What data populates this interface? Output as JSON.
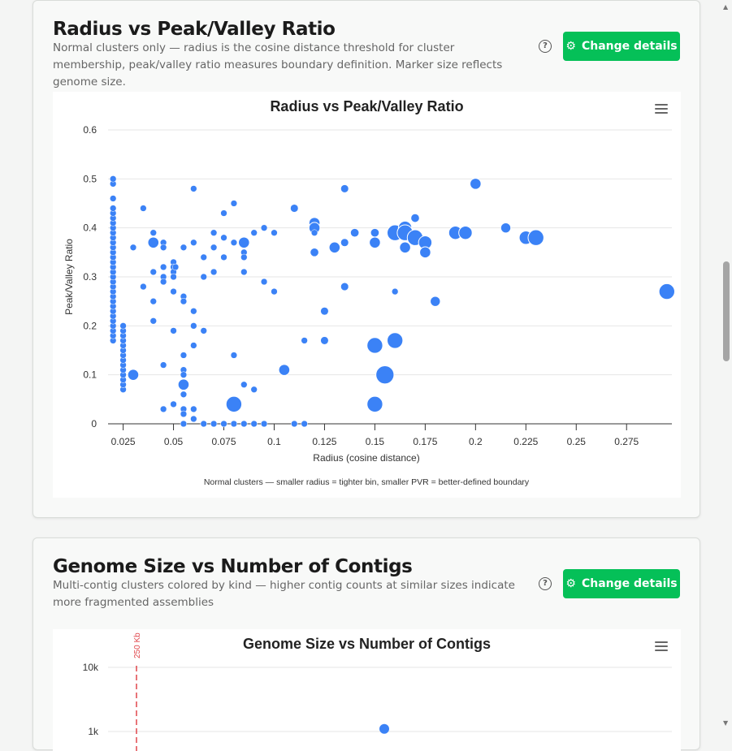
{
  "cards": [
    {
      "title": "Radius vs Peak/Valley Ratio",
      "description": "Normal clusters only — radius is the cosine distance threshold for cluster membership, peak/valley ratio measures boundary definition. Marker size reflects genome size.",
      "help_icon": "?",
      "button_label": "Change details",
      "button_icon": "gear-icon"
    },
    {
      "title": "Genome Size vs Number of Contigs",
      "description": "Multi-contig clusters colored by kind — higher contig counts at similar sizes indicate more fragmented assemblies",
      "help_icon": "?",
      "button_label": "Change details",
      "button_icon": "gear-icon"
    }
  ],
  "colors": {
    "accent": "#05c058",
    "marker": "#3b82f6",
    "plotline": "#e0464b"
  },
  "chart_data": [
    {
      "type": "scatter",
      "title": "Radius vs Peak/Valley Ratio",
      "xlabel": "Radius (cosine distance)",
      "ylabel": "Peak/Valley Ratio",
      "caption": "Normal clusters — smaller radius = tighter bin, smaller PVR = better-defined boundary",
      "xlim": [
        0.0175,
        0.2975
      ],
      "ylim": [
        0,
        0.6
      ],
      "xticks": [
        "0.025",
        "0.05",
        "0.075",
        "0.1",
        "0.125",
        "0.15",
        "0.175",
        "0.2",
        "0.225",
        "0.25",
        "0.275"
      ],
      "yticks": [
        "0",
        "0.1",
        "0.2",
        "0.3",
        "0.4",
        "0.5",
        "0.6"
      ],
      "grid": true,
      "point_fields": [
        "radius",
        "peak_valley_ratio",
        "relative_genome_size"
      ],
      "points": [
        [
          0.02,
          0.17,
          1
        ],
        [
          0.02,
          0.18,
          1
        ],
        [
          0.02,
          0.19,
          1
        ],
        [
          0.02,
          0.2,
          1
        ],
        [
          0.02,
          0.21,
          1
        ],
        [
          0.02,
          0.22,
          1
        ],
        [
          0.02,
          0.23,
          1
        ],
        [
          0.02,
          0.24,
          1
        ],
        [
          0.02,
          0.25,
          1
        ],
        [
          0.02,
          0.26,
          1
        ],
        [
          0.02,
          0.27,
          1
        ],
        [
          0.02,
          0.28,
          1
        ],
        [
          0.02,
          0.29,
          1
        ],
        [
          0.02,
          0.3,
          1
        ],
        [
          0.02,
          0.31,
          1
        ],
        [
          0.02,
          0.32,
          1
        ],
        [
          0.02,
          0.33,
          1
        ],
        [
          0.02,
          0.34,
          1
        ],
        [
          0.02,
          0.35,
          1
        ],
        [
          0.02,
          0.36,
          1
        ],
        [
          0.02,
          0.37,
          1
        ],
        [
          0.02,
          0.38,
          1
        ],
        [
          0.02,
          0.39,
          1
        ],
        [
          0.02,
          0.4,
          1
        ],
        [
          0.02,
          0.41,
          1
        ],
        [
          0.02,
          0.42,
          1
        ],
        [
          0.02,
          0.43,
          1
        ],
        [
          0.02,
          0.44,
          1
        ],
        [
          0.02,
          0.46,
          1
        ],
        [
          0.02,
          0.49,
          1
        ],
        [
          0.02,
          0.5,
          1
        ],
        [
          0.025,
          0.07,
          1
        ],
        [
          0.025,
          0.08,
          1
        ],
        [
          0.025,
          0.09,
          1
        ],
        [
          0.025,
          0.1,
          1
        ],
        [
          0.025,
          0.11,
          1
        ],
        [
          0.025,
          0.12,
          1
        ],
        [
          0.025,
          0.13,
          1
        ],
        [
          0.025,
          0.14,
          1
        ],
        [
          0.025,
          0.15,
          1
        ],
        [
          0.025,
          0.16,
          1
        ],
        [
          0.025,
          0.17,
          1
        ],
        [
          0.025,
          0.18,
          1
        ],
        [
          0.025,
          0.19,
          1
        ],
        [
          0.025,
          0.2,
          1
        ],
        [
          0.03,
          0.1,
          2
        ],
        [
          0.03,
          0.36,
          1
        ],
        [
          0.035,
          0.44,
          1
        ],
        [
          0.035,
          0.28,
          1
        ],
        [
          0.04,
          0.39,
          1
        ],
        [
          0.04,
          0.37,
          2
        ],
        [
          0.04,
          0.31,
          1
        ],
        [
          0.04,
          0.25,
          1
        ],
        [
          0.04,
          0.21,
          1
        ],
        [
          0.045,
          0.37,
          1
        ],
        [
          0.045,
          0.36,
          1
        ],
        [
          0.045,
          0.32,
          1
        ],
        [
          0.045,
          0.3,
          1
        ],
        [
          0.045,
          0.29,
          1
        ],
        [
          0.045,
          0.12,
          1
        ],
        [
          0.045,
          0.03,
          1
        ],
        [
          0.05,
          0.33,
          1
        ],
        [
          0.05,
          0.32,
          1
        ],
        [
          0.05,
          0.31,
          1
        ],
        [
          0.05,
          0.3,
          1
        ],
        [
          0.05,
          0.27,
          1
        ],
        [
          0.05,
          0.19,
          1
        ],
        [
          0.05,
          0.04,
          1
        ],
        [
          0.051,
          0.32,
          1
        ],
        [
          0.055,
          0.36,
          1
        ],
        [
          0.055,
          0.26,
          1
        ],
        [
          0.055,
          0.25,
          1
        ],
        [
          0.055,
          0.14,
          1
        ],
        [
          0.055,
          0.11,
          1
        ],
        [
          0.055,
          0.1,
          1
        ],
        [
          0.055,
          0.08,
          2
        ],
        [
          0.055,
          0.06,
          1
        ],
        [
          0.055,
          0.03,
          1
        ],
        [
          0.055,
          0.02,
          1
        ],
        [
          0.055,
          0,
          1
        ],
        [
          0.06,
          0.48,
          1
        ],
        [
          0.06,
          0.37,
          1
        ],
        [
          0.06,
          0.23,
          1
        ],
        [
          0.06,
          0.2,
          1
        ],
        [
          0.06,
          0.16,
          1
        ],
        [
          0.06,
          0.03,
          1
        ],
        [
          0.06,
          0.01,
          1
        ],
        [
          0.065,
          0.34,
          1
        ],
        [
          0.065,
          0.3,
          1
        ],
        [
          0.065,
          0.19,
          1
        ],
        [
          0.065,
          0,
          1
        ],
        [
          0.07,
          0.39,
          1
        ],
        [
          0.07,
          0.36,
          1
        ],
        [
          0.07,
          0.31,
          1
        ],
        [
          0.07,
          0,
          1
        ],
        [
          0.075,
          0.43,
          1
        ],
        [
          0.075,
          0.38,
          1
        ],
        [
          0.075,
          0.34,
          1
        ],
        [
          0.075,
          0,
          1
        ],
        [
          0.08,
          0.45,
          1
        ],
        [
          0.08,
          0.37,
          1
        ],
        [
          0.08,
          0.14,
          1
        ],
        [
          0.08,
          0.04,
          3
        ],
        [
          0.08,
          0,
          1
        ],
        [
          0.085,
          0.37,
          2
        ],
        [
          0.085,
          0.35,
          1
        ],
        [
          0.085,
          0.34,
          1
        ],
        [
          0.085,
          0.31,
          1
        ],
        [
          0.085,
          0.08,
          1
        ],
        [
          0.085,
          0,
          1
        ],
        [
          0.09,
          0.39,
          1
        ],
        [
          0.09,
          0.07,
          1
        ],
        [
          0.09,
          0,
          1
        ],
        [
          0.095,
          0.4,
          1
        ],
        [
          0.095,
          0.29,
          1
        ],
        [
          0.095,
          0,
          1
        ],
        [
          0.1,
          0.39,
          1
        ],
        [
          0.1,
          0.27,
          1
        ],
        [
          0.105,
          0.11,
          2
        ],
        [
          0.11,
          0.44,
          1.3
        ],
        [
          0.11,
          0,
          1
        ],
        [
          0.115,
          0.17,
          1
        ],
        [
          0.115,
          0,
          1
        ],
        [
          0.12,
          0.41,
          2
        ],
        [
          0.12,
          0.4,
          2
        ],
        [
          0.12,
          0.39,
          1
        ],
        [
          0.12,
          0.35,
          1.5
        ],
        [
          0.125,
          0.23,
          1.3
        ],
        [
          0.125,
          0.17,
          1.3
        ],
        [
          0.13,
          0.36,
          2
        ],
        [
          0.135,
          0.48,
          1.3
        ],
        [
          0.135,
          0.37,
          1.3
        ],
        [
          0.135,
          0.28,
          1.3
        ],
        [
          0.14,
          0.39,
          1.5
        ],
        [
          0.15,
          0.39,
          1.5
        ],
        [
          0.15,
          0.37,
          2
        ],
        [
          0.15,
          0.16,
          3
        ],
        [
          0.15,
          0.04,
          3
        ],
        [
          0.155,
          0.1,
          3.5
        ],
        [
          0.16,
          0.39,
          3
        ],
        [
          0.16,
          0.27,
          1
        ],
        [
          0.16,
          0.17,
          3
        ],
        [
          0.165,
          0.4,
          2.5
        ],
        [
          0.165,
          0.39,
          3
        ],
        [
          0.165,
          0.36,
          2
        ],
        [
          0.17,
          0.42,
          1.5
        ],
        [
          0.17,
          0.38,
          3
        ],
        [
          0.175,
          0.37,
          2.5
        ],
        [
          0.175,
          0.35,
          2
        ],
        [
          0.18,
          0.25,
          1.8
        ],
        [
          0.19,
          0.39,
          2.5
        ],
        [
          0.195,
          0.39,
          2.5
        ],
        [
          0.2,
          0.49,
          2
        ],
        [
          0.215,
          0.4,
          1.8
        ],
        [
          0.225,
          0.38,
          2.5
        ],
        [
          0.23,
          0.38,
          3
        ],
        [
          0.295,
          0.27,
          3
        ]
      ]
    },
    {
      "type": "scatter",
      "title": "Genome Size vs Number of Contigs",
      "y_scale": "log",
      "yticks": [
        "10k",
        "1k"
      ],
      "plotline_label": "250 Kb",
      "points": [
        {
          "contigs": 1100
        }
      ]
    }
  ]
}
